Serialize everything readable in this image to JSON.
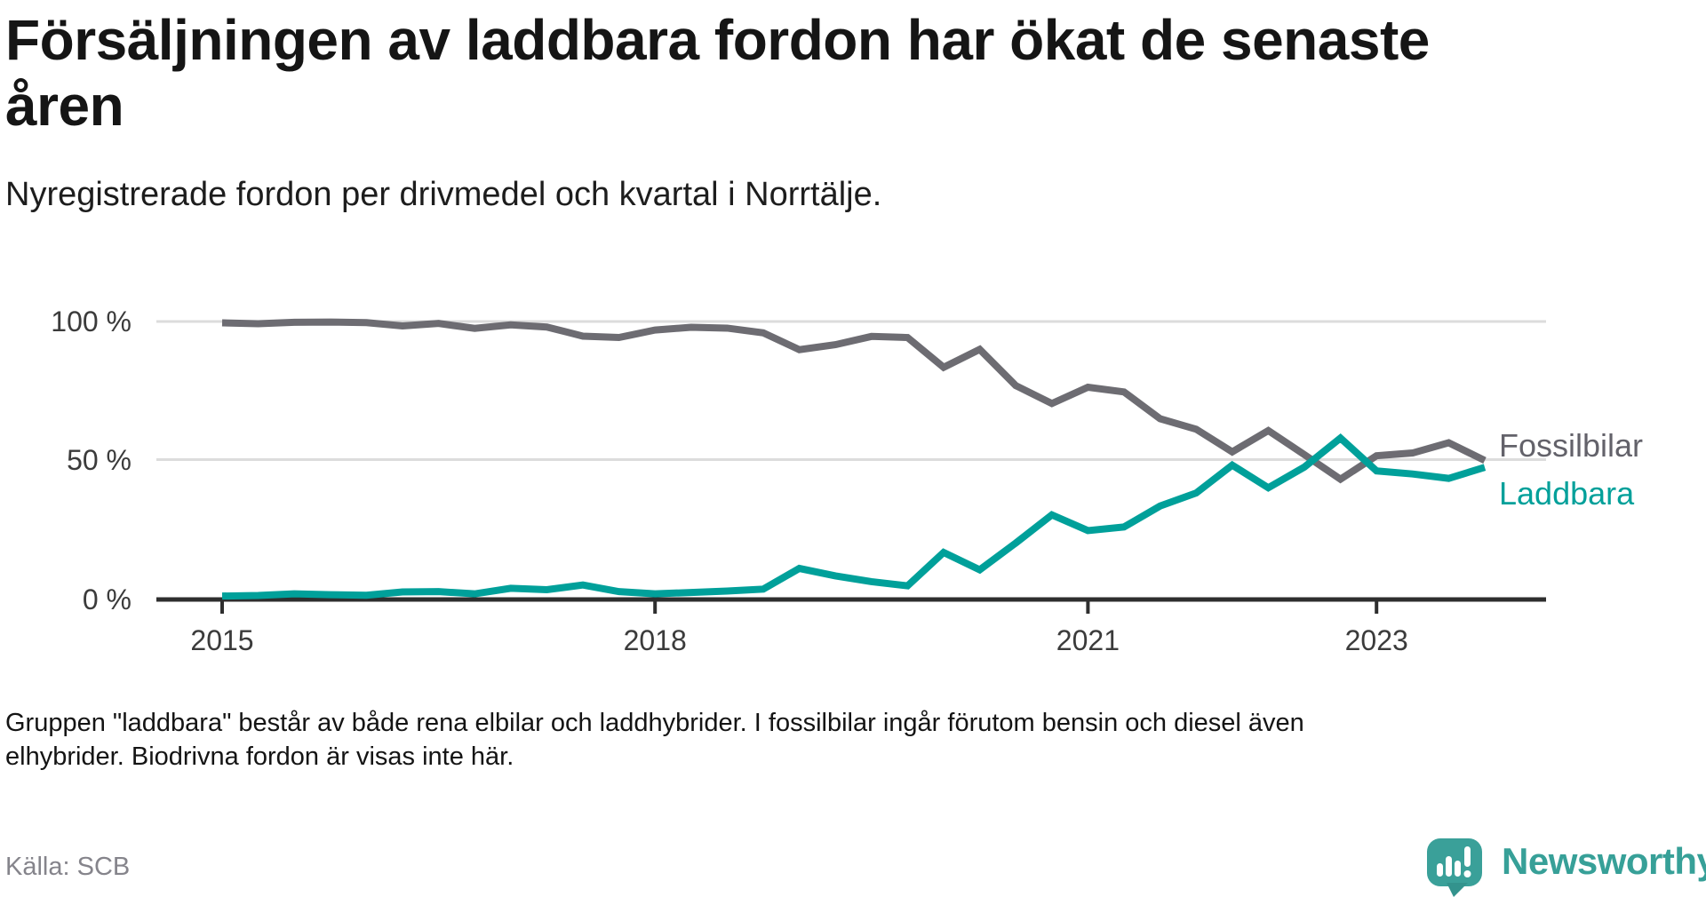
{
  "header": {
    "title": "Försäljningen av laddbara fordon har ökat de senaste\nåren",
    "subtitle": "Nyregistrerade fordon per drivmedel och kvartal i Norrtälje."
  },
  "chart_data": {
    "type": "line",
    "title": "Nyregistrerade fordon per drivmedel och kvartal i Norrtälje",
    "ylim": [
      0,
      100
    ],
    "y_unit": "%",
    "grid": "horizontal",
    "legend_position": "right of line ends",
    "y_ticks": [
      {
        "label": "100 %",
        "value": 100
      },
      {
        "label": "50 %",
        "value": 50
      },
      {
        "label": "0 %",
        "value": 0
      }
    ],
    "x_ticks": [
      {
        "label": "2015",
        "index": 0
      },
      {
        "label": "2018",
        "index": 12
      },
      {
        "label": "2021",
        "index": 24
      },
      {
        "label": "2023",
        "index": 32
      }
    ],
    "categories": [
      "2015 Q1",
      "2015 Q2",
      "2015 Q3",
      "2015 Q4",
      "2016 Q1",
      "2016 Q2",
      "2016 Q3",
      "2016 Q4",
      "2017 Q1",
      "2017 Q2",
      "2017 Q3",
      "2017 Q4",
      "2018 Q1",
      "2018 Q2",
      "2018 Q3",
      "2018 Q4",
      "2019 Q1",
      "2019 Q2",
      "2019 Q3",
      "2019 Q4",
      "2020 Q1",
      "2020 Q2",
      "2020 Q3",
      "2020 Q4",
      "2021 Q1",
      "2021 Q2",
      "2021 Q3",
      "2021 Q4",
      "2022 Q1",
      "2022 Q2",
      "2022 Q3",
      "2022 Q4",
      "2023 Q1",
      "2023 Q2",
      "2023 Q3",
      "2023 Q4"
    ],
    "series": [
      {
        "name": "Fossilbilar",
        "color": "#6d6c72",
        "values": [
          99.5,
          99.2,
          99.7,
          99.8,
          99.6,
          98.4,
          99.3,
          97.5,
          98.8,
          98.0,
          94.7,
          94.2,
          96.9,
          97.9,
          97.6,
          95.9,
          89.8,
          91.6,
          94.6,
          94.2,
          83.4,
          89.9,
          76.8,
          70.3,
          76.2,
          74.5,
          64.8,
          61.0,
          52.8,
          60.5,
          51.8,
          42.9,
          51.4,
          52.4,
          56.1,
          49.7
        ]
      },
      {
        "name": "Laddbara",
        "color": "#00a09a",
        "values": [
          0.6,
          0.8,
          1.4,
          1.1,
          0.9,
          2.1,
          2.2,
          1.4,
          3.4,
          2.9,
          4.6,
          2.2,
          1.4,
          1.9,
          2.4,
          3.1,
          10.6,
          7.9,
          5.8,
          4.3,
          16.4,
          10.1,
          19.8,
          30.0,
          24.3,
          25.6,
          33.2,
          37.9,
          48.0,
          39.8,
          47.3,
          57.8,
          45.9,
          44.8,
          43.2,
          47.2
        ]
      }
    ]
  },
  "footnote": {
    "line1": "Gruppen \"laddbara\" består av både rena elbilar och laddhybrider. I fossilbilar ingår förutom bensin och diesel även",
    "line2": "elhybrider. Biodrivna fordon är visas inte här."
  },
  "source": {
    "label": "Källa: SCB"
  },
  "branding": {
    "name": "Newsworthy",
    "logo_icon": "speech-bubble-bar-chart-icon",
    "color": "#37a098"
  },
  "style": {
    "gridline_color": "#dcdcdc",
    "axis_color": "#2e2e2e",
    "tick_label_color": "#3b3b3b"
  }
}
